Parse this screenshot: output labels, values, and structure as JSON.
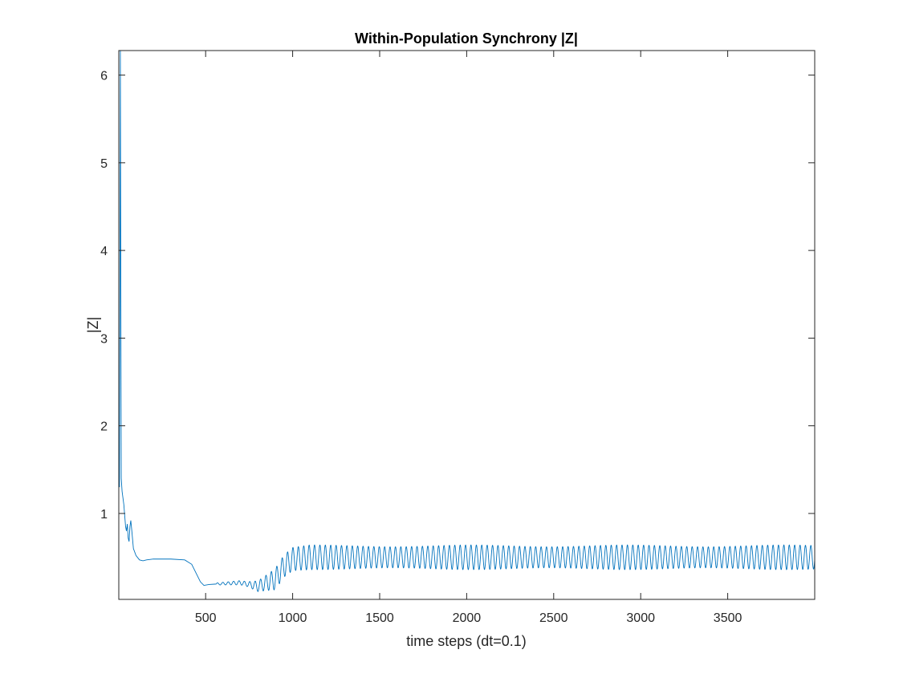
{
  "chart_data": {
    "type": "line",
    "title": "Within-Population Synchrony |Z|",
    "xlabel": "time steps (dt=0.1)",
    "ylabel": "|Z|",
    "xlim": [
      1,
      4000
    ],
    "ylim": [
      0.02,
      6.28
    ],
    "xticks": [
      500,
      1000,
      1500,
      2000,
      2500,
      3000,
      3500
    ],
    "xtick_labels": [
      "500",
      "1000",
      "1500",
      "2000",
      "2500",
      "3000",
      "3500"
    ],
    "yticks": [
      1,
      2,
      3,
      4,
      5,
      6
    ],
    "ytick_labels": [
      "1",
      "2",
      "3",
      "4",
      "5",
      "6"
    ],
    "grid": false,
    "legend": "none",
    "series": [
      {
        "color": "#0072BD",
        "description_points": [
          [
            1,
            1.6
          ],
          [
            5,
            1.3
          ],
          [
            10,
            6.28
          ],
          [
            15,
            1.4
          ],
          [
            20,
            1.25
          ],
          [
            30,
            1.1
          ],
          [
            40,
            0.85
          ],
          [
            45,
            0.8
          ],
          [
            50,
            0.88
          ],
          [
            55,
            0.72
          ],
          [
            60,
            0.68
          ],
          [
            65,
            0.85
          ],
          [
            70,
            0.92
          ],
          [
            75,
            0.82
          ],
          [
            85,
            0.6
          ],
          [
            100,
            0.52
          ],
          [
            120,
            0.47
          ],
          [
            140,
            0.46
          ],
          [
            160,
            0.47
          ],
          [
            200,
            0.48
          ],
          [
            300,
            0.48
          ],
          [
            380,
            0.47
          ],
          [
            420,
            0.42
          ],
          [
            450,
            0.3
          ],
          [
            470,
            0.22
          ],
          [
            490,
            0.18
          ],
          [
            520,
            0.19
          ],
          [
            600,
            0.2
          ],
          [
            700,
            0.21
          ],
          [
            800,
            0.17
          ],
          [
            900,
            0.25
          ],
          [
            950,
            0.4
          ],
          [
            1000,
            0.48
          ],
          [
            1100,
            0.5
          ],
          [
            2000,
            0.5
          ],
          [
            3000,
            0.5
          ],
          [
            4000,
            0.5
          ]
        ],
        "oscillation": {
          "period": 31,
          "segments": [
            {
              "from": 560,
              "to": 740,
              "amp_start": 0.012,
              "amp_end": 0.03
            },
            {
              "from": 740,
              "to": 900,
              "amp_start": 0.03,
              "amp_end": 0.12
            },
            {
              "from": 900,
              "to": 1100,
              "amp_start": 0.12,
              "amp_end": 0.13
            },
            {
              "from": 1100,
              "to": 4000,
              "amp_start": 0.13,
              "amp_end": 0.13
            }
          ]
        }
      }
    ]
  }
}
